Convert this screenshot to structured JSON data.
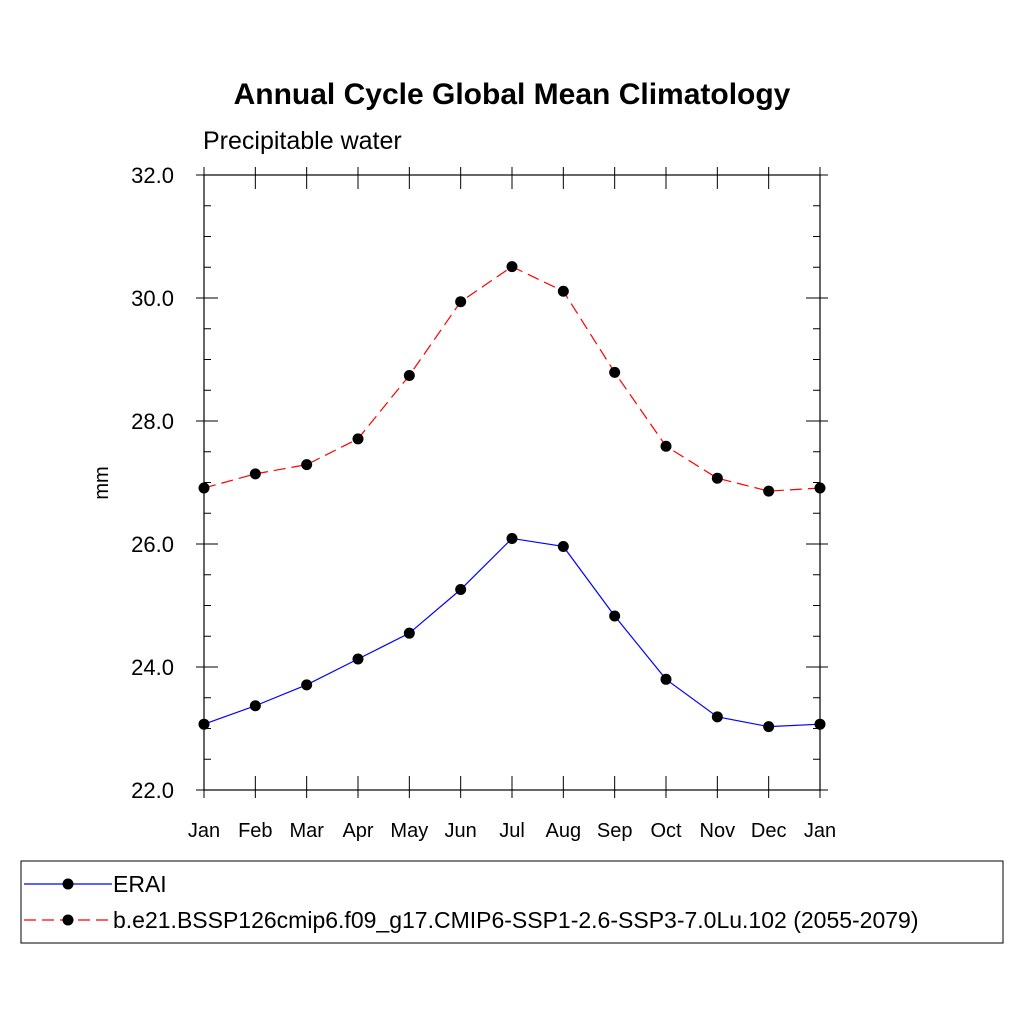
{
  "chart_data": {
    "type": "line",
    "title": "Annual Cycle Global Mean Climatology",
    "subtitle": "Precipitable water",
    "xlabel": "",
    "ylabel": "mm",
    "categories": [
      "Jan",
      "Feb",
      "Mar",
      "Apr",
      "May",
      "Jun",
      "Jul",
      "Aug",
      "Sep",
      "Oct",
      "Nov",
      "Dec",
      "Jan"
    ],
    "yticks": [
      "22.0",
      "24.0",
      "26.0",
      "28.0",
      "30.0",
      "32.0"
    ],
    "ylim": [
      22,
      32
    ],
    "grid": false,
    "legend_position": "bottom",
    "series": [
      {
        "name": "ERAI",
        "color": "#0000ff",
        "line_style": "solid",
        "values": [
          23.07,
          23.37,
          23.71,
          24.13,
          24.55,
          25.26,
          26.09,
          25.96,
          24.83,
          23.8,
          23.19,
          23.03,
          23.07
        ]
      },
      {
        "name": "b.e21.BSSP126cmip6.f09_g17.CMIP6-SSP1-2.6-SSP3-7.0Lu.102 (2055-2079)",
        "color": "#ff0000",
        "line_style": "dashed",
        "values": [
          26.91,
          27.14,
          27.29,
          27.71,
          28.74,
          29.94,
          30.51,
          30.11,
          28.79,
          27.59,
          27.07,
          26.86,
          26.91
        ]
      }
    ]
  }
}
